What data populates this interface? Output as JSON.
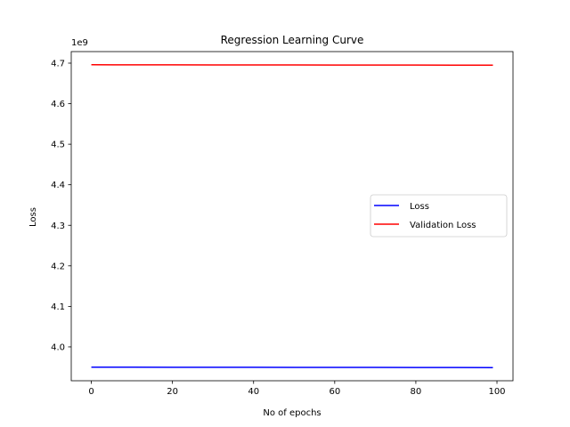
{
  "chart_data": {
    "type": "line",
    "title": "Regression Learning Curve",
    "xlabel": "No of epochs",
    "ylabel": "Loss",
    "offset_text": "1e9",
    "xlim": [
      -4.95,
      103.95
    ],
    "ylim": [
      3.9165,
      4.7285
    ],
    "x_ticks": [
      0,
      20,
      40,
      60,
      80,
      100
    ],
    "x_tick_labels": [
      "0",
      "20",
      "40",
      "60",
      "80",
      "100"
    ],
    "y_ticks": [
      4.0,
      4.1,
      4.2,
      4.3,
      4.4,
      4.5,
      4.6,
      4.7
    ],
    "y_tick_labels": [
      "4.0",
      "4.1",
      "4.2",
      "4.3",
      "4.4",
      "4.5",
      "4.6",
      "4.7"
    ],
    "y_unit_note": "values shown in units of 1e9",
    "grid": false,
    "legend_position": "center-right",
    "x": [
      0,
      10,
      20,
      30,
      40,
      50,
      60,
      70,
      80,
      90,
      99
    ],
    "series": [
      {
        "name": "Loss",
        "color": "#0000ff",
        "values": [
          3.95,
          3.9499,
          3.9498,
          3.9497,
          3.9496,
          3.9495,
          3.9494,
          3.9493,
          3.9492,
          3.9491,
          3.949
        ]
      },
      {
        "name": "Validation Loss",
        "color": "#ff0000",
        "values": [
          4.696,
          4.6959,
          4.6958,
          4.6957,
          4.6956,
          4.6955,
          4.6954,
          4.6953,
          4.6952,
          4.6951,
          4.695
        ]
      }
    ]
  }
}
